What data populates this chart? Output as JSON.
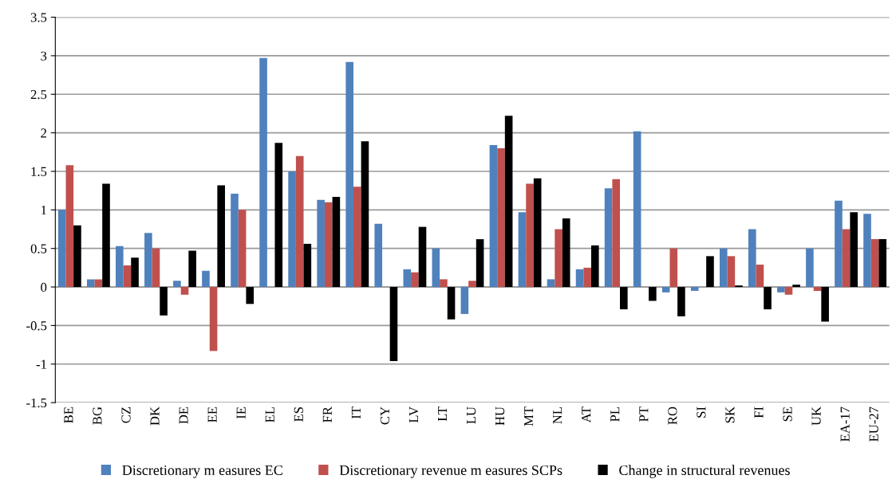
{
  "chart_data": {
    "type": "bar",
    "categories": [
      "BE",
      "BG",
      "CZ",
      "DK",
      "DE",
      "EE",
      "IE",
      "EL",
      "ES",
      "FR",
      "IT",
      "CY",
      "LV",
      "LT",
      "LU",
      "HU",
      "MT",
      "NL",
      "AT",
      "PL",
      "PT",
      "RO",
      "SI",
      "SK",
      "FI",
      "SE",
      "UK",
      "EA-17",
      "EU-27"
    ],
    "series": [
      {
        "name": "Discretionary m easures EC",
        "color": "#4f81bd",
        "values": [
          1.0,
          0.1,
          0.53,
          0.7,
          0.08,
          0.21,
          1.21,
          2.97,
          1.5,
          1.13,
          2.92,
          0.82,
          0.23,
          0.5,
          -0.35,
          1.84,
          0.97,
          0.1,
          0.23,
          1.28,
          2.02,
          -0.07,
          -0.05,
          0.5,
          0.75,
          -0.07,
          0.5,
          1.12,
          0.95
        ]
      },
      {
        "name": "Discretionary revenue m easures SCPs",
        "color": "#c0504d",
        "values": [
          1.58,
          0.1,
          0.28,
          0.5,
          -0.1,
          -0.83,
          1.0,
          null,
          1.7,
          1.1,
          1.3,
          null,
          0.19,
          0.1,
          0.08,
          1.8,
          1.34,
          0.75,
          0.25,
          1.4,
          null,
          0.5,
          null,
          0.4,
          0.29,
          -0.1,
          -0.05,
          0.75,
          0.62
        ]
      },
      {
        "name": "Change in structural revenues",
        "color": "#000000",
        "values": [
          0.8,
          1.34,
          0.38,
          -0.37,
          0.47,
          1.32,
          -0.22,
          1.87,
          0.56,
          1.17,
          1.89,
          -0.96,
          0.78,
          -0.42,
          0.62,
          2.22,
          1.41,
          0.89,
          0.54,
          -0.29,
          -0.18,
          -0.38,
          0.4,
          0.02,
          -0.29,
          0.03,
          -0.45,
          0.97,
          0.62
        ]
      }
    ],
    "ylim": [
      -1.5,
      3.5
    ],
    "yticks": [
      -1.5,
      -1,
      -0.5,
      0,
      0.5,
      1,
      1.5,
      2,
      2.5,
      3,
      3.5
    ],
    "grid": "y",
    "legend": "bottom"
  }
}
